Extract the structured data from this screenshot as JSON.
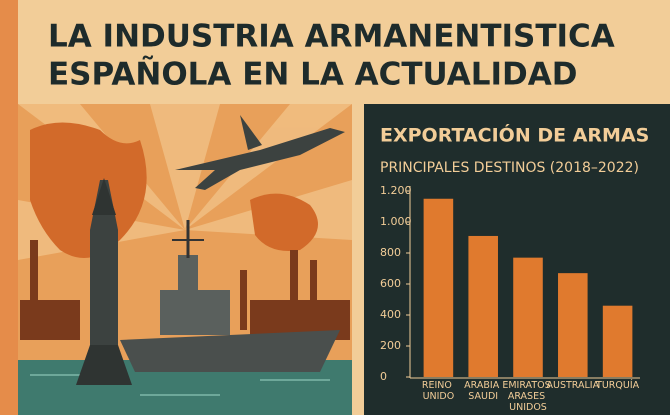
{
  "header": {
    "title_line1": "LA INDUSTRIA ARMANENTISTICA",
    "title_line2": "ESPAÑOLA EN LA ACTUALIDAD"
  },
  "chart_data": {
    "type": "bar",
    "title": "EXPORTACIÓN DE ARMAS",
    "subtitle": "PRINCIPALES DESTINOS (2018–2022)",
    "categories": [
      "REINO UNIDO",
      "ARABIA SAUDI",
      "EMIRATOS ARASES UNIDOS",
      "AUSTRALIA",
      "TURQUÍA"
    ],
    "values": [
      1150,
      910,
      770,
      670,
      460
    ],
    "color": "#e07a2e",
    "ylim": [
      0,
      1200
    ],
    "yticks": [
      0,
      200,
      400,
      600,
      800,
      {
        "value": 1000,
        "label": "1.000"
      },
      {
        "value": 1200,
        "label": "1.200"
      }
    ],
    "grid": false
  }
}
